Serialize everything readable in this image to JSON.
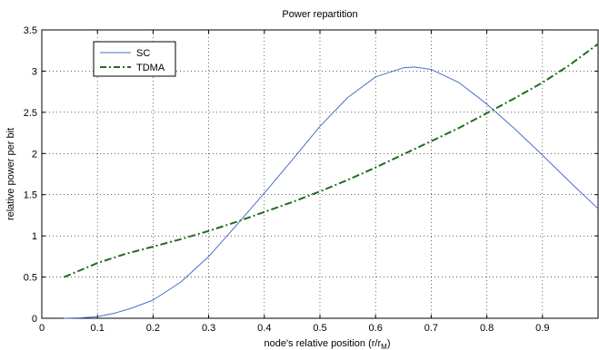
{
  "chart_data": {
    "type": "line",
    "title": "Power repartition",
    "xlabel": "node's relative position (r/r",
    "xlabel_sub": "M",
    "xlabel_end": ")",
    "ylabel": "relative power per bit",
    "xlim": [
      0,
      1
    ],
    "ylim": [
      0,
      3.5
    ],
    "xticks": [
      "0",
      "0.1",
      "0.2",
      "0.3",
      "0.4",
      "0.5",
      "0.6",
      "0.7",
      "0.8",
      "0.9"
    ],
    "yticks": [
      "0",
      "0.5",
      "1",
      "1.5",
      "2",
      "2.5",
      "3",
      "3.5"
    ],
    "grid": true,
    "legend_position": "top-left",
    "series": [
      {
        "name": "SC",
        "color": "#4a6ec6",
        "style": "solid",
        "x": [
          0.04,
          0.07,
          0.1,
          0.13,
          0.16,
          0.2,
          0.25,
          0.3,
          0.35,
          0.4,
          0.45,
          0.5,
          0.55,
          0.6,
          0.65,
          0.67,
          0.7,
          0.75,
          0.8,
          0.85,
          0.9,
          0.95,
          1.0
        ],
        "values": [
          0.0,
          0.005,
          0.02,
          0.06,
          0.12,
          0.22,
          0.44,
          0.75,
          1.13,
          1.52,
          1.92,
          2.33,
          2.68,
          2.93,
          3.04,
          3.05,
          3.02,
          2.86,
          2.6,
          2.3,
          1.98,
          1.65,
          1.33
        ]
      },
      {
        "name": "TDMA",
        "color": "#1e6e1e",
        "style": "dash-dot",
        "x": [
          0.04,
          0.1,
          0.15,
          0.2,
          0.25,
          0.3,
          0.35,
          0.4,
          0.45,
          0.5,
          0.55,
          0.6,
          0.65,
          0.7,
          0.75,
          0.8,
          0.85,
          0.9,
          0.95,
          1.0
        ],
        "values": [
          0.5,
          0.67,
          0.78,
          0.87,
          0.96,
          1.06,
          1.17,
          1.29,
          1.41,
          1.54,
          1.68,
          1.83,
          1.99,
          2.15,
          2.31,
          2.49,
          2.67,
          2.86,
          3.08,
          3.33
        ]
      }
    ]
  }
}
